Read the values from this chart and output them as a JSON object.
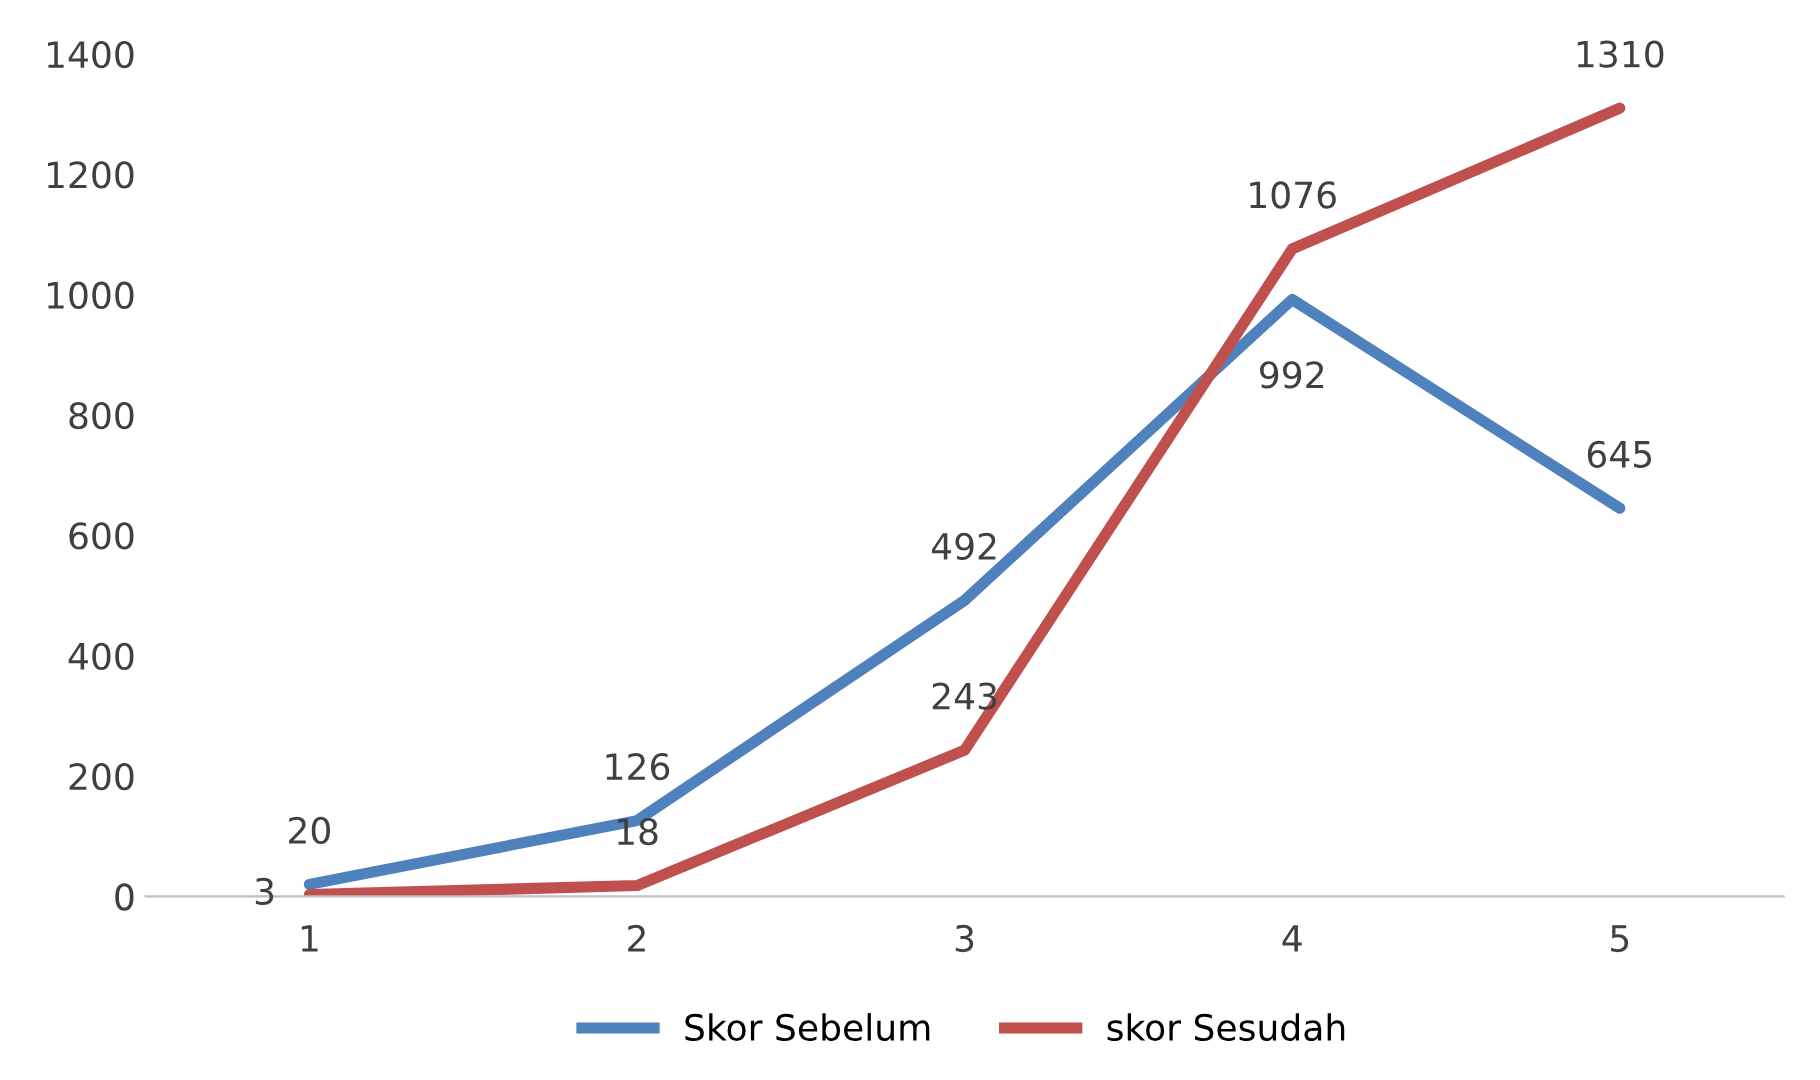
{
  "chart_data": {
    "type": "line",
    "categories": [
      "1",
      "2",
      "3",
      "4",
      "5"
    ],
    "series": [
      {
        "name": "Skor Sebelum",
        "color": "#4f81bd",
        "values": [
          20,
          126,
          492,
          992,
          645
        ]
      },
      {
        "name": "skor Sesudah",
        "color": "#c0504d",
        "values": [
          3,
          18,
          243,
          1076,
          1310
        ]
      }
    ],
    "ylim": [
      0,
      1400
    ],
    "yticks": [
      0,
      200,
      400,
      600,
      800,
      1000,
      1200,
      1400
    ],
    "grid": false,
    "legend": "bottom",
    "data_labels": true,
    "marker": "none",
    "line_style": "solid"
  }
}
